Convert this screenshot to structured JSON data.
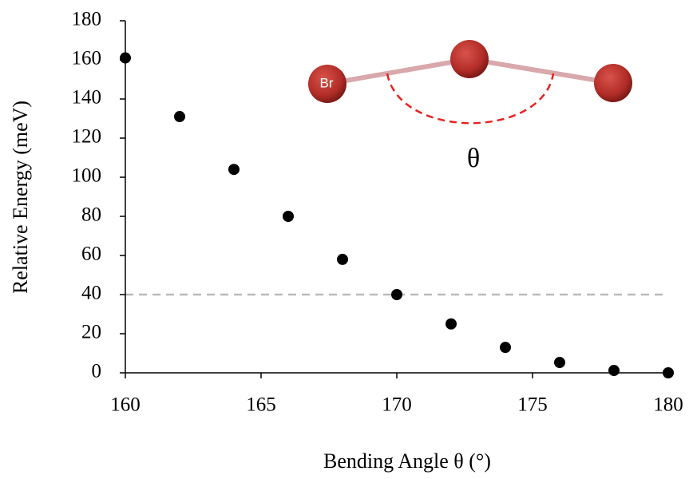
{
  "chart_data": {
    "type": "scatter",
    "xlabel": "Bending Angle θ (°)",
    "ylabel": "Relative Energy (meV)",
    "x": [
      160,
      162,
      164,
      166,
      168,
      170,
      172,
      174,
      176,
      178,
      180
    ],
    "values": [
      161,
      131,
      104,
      80,
      58,
      40,
      25,
      13,
      5.3,
      1.2,
      0
    ],
    "color": "#000000",
    "xlim": [
      160,
      180
    ],
    "xticks": [
      160,
      165,
      170,
      175,
      180
    ],
    "ylim": [
      0,
      180
    ],
    "yticks": [
      0,
      20,
      40,
      60,
      80,
      100,
      120,
      140,
      160,
      180
    ],
    "reference_line": {
      "value": 40,
      "color": "#bbbbbb"
    },
    "annotations": [
      "Br",
      "θ"
    ]
  }
}
